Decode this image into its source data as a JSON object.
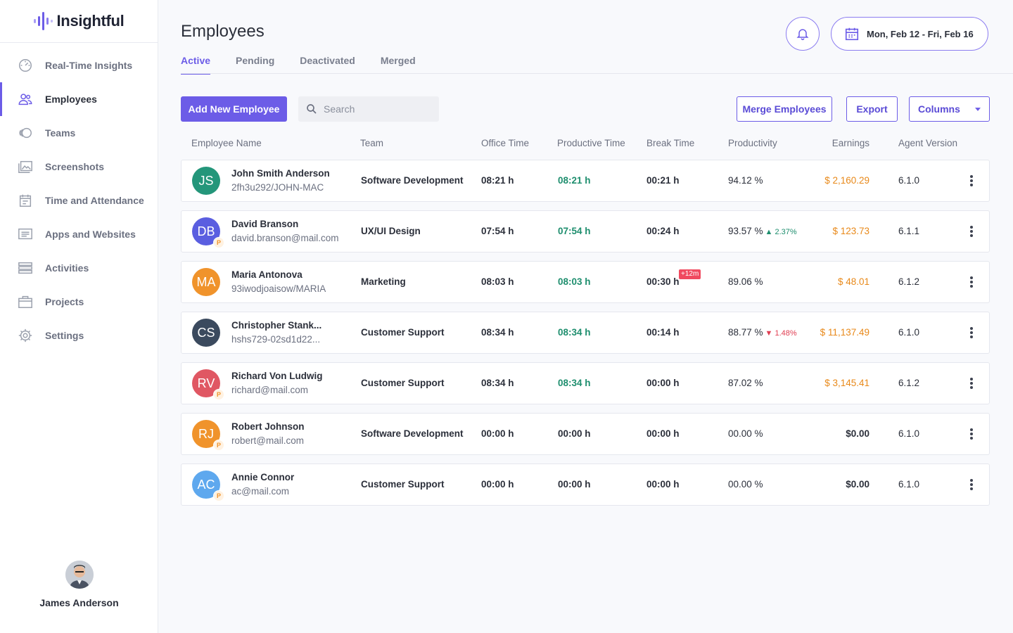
{
  "app": {
    "logo_text": "Insightful"
  },
  "sidebar": {
    "items": [
      {
        "label": "Real-Time Insights",
        "icon": "gauge-icon"
      },
      {
        "label": "Employees",
        "icon": "users-icon"
      },
      {
        "label": "Teams",
        "icon": "teams-icon"
      },
      {
        "label": "Screenshots",
        "icon": "images-icon"
      },
      {
        "label": "Time and Attendance",
        "icon": "calendar-icon"
      },
      {
        "label": "Apps and Websites",
        "icon": "monitor-list-icon"
      },
      {
        "label": "Activities",
        "icon": "list-icon"
      },
      {
        "label": "Projects",
        "icon": "briefcase-icon"
      },
      {
        "label": "Settings",
        "icon": "gear-icon"
      }
    ],
    "active_index": 1
  },
  "user": {
    "name": "James Anderson"
  },
  "header": {
    "title": "Employees",
    "tabs": [
      "Active",
      "Pending",
      "Deactivated",
      "Merged"
    ],
    "active_tab": 0,
    "date_range": "Mon, Feb 12 - Fri,  Feb 16"
  },
  "toolbar": {
    "add_label": "Add New Employee",
    "search_placeholder": "Search",
    "merge_label": "Merge Employees",
    "export_label": "Export",
    "columns_label": "Columns"
  },
  "table": {
    "headers": {
      "name": "Employee Name",
      "team": "Team",
      "office": "Office Time",
      "productive": "Productive Time",
      "break": "Break Time",
      "productivity": "Productivity",
      "earnings": "Earnings",
      "agent": "Agent Version"
    },
    "rows": [
      {
        "initials": "JS",
        "color": "#24967a",
        "pending": false,
        "name": "John Smith Anderson",
        "sub": "2fh3u292/JOHN-MAC",
        "team": "Software Development",
        "office": "08:21 h",
        "productive": "08:21 h",
        "productive_highlight": true,
        "break": "00:21 h",
        "break_badge": "",
        "productivity": "94.12 %",
        "trend": "",
        "trend_dir": "",
        "earnings": "$ 2,160.29",
        "earnings_zero": false,
        "agent": "6.1.0"
      },
      {
        "initials": "DB",
        "color": "#5a5ee0",
        "pending": true,
        "name": "David Branson",
        "sub": "david.branson@mail.com",
        "team": "UX/UI Design",
        "office": "07:54 h",
        "productive": "07:54 h",
        "productive_highlight": true,
        "break": "00:24 h",
        "break_badge": "",
        "productivity": "93.57 %",
        "trend": "2.37%",
        "trend_dir": "up",
        "earnings": "$ 123.73",
        "earnings_zero": false,
        "agent": "6.1.1"
      },
      {
        "initials": "MA",
        "color": "#f0932b",
        "pending": false,
        "name": "Maria Antonova",
        "sub": "93iwodjoaisow/MARIA",
        "team": "Marketing",
        "office": "08:03 h",
        "productive": "08:03 h",
        "productive_highlight": true,
        "break": "00:30 h",
        "break_badge": "+12m",
        "productivity": "89.06 %",
        "trend": "",
        "trend_dir": "",
        "earnings": "$ 48.01",
        "earnings_zero": false,
        "agent": "6.1.2"
      },
      {
        "initials": "CS",
        "color": "#3b4a5e",
        "pending": false,
        "name": "Christopher Stank...",
        "sub": "hshs729-02sd1d22...",
        "team": "Customer Support",
        "office": "08:34 h",
        "productive": "08:34 h",
        "productive_highlight": true,
        "break": "00:14 h",
        "break_badge": "",
        "productivity": "88.77 %",
        "trend": "1.48%",
        "trend_dir": "down",
        "earnings": "$ 11,137.49",
        "earnings_zero": false,
        "agent": "6.1.0"
      },
      {
        "initials": "RV",
        "color": "#e05763",
        "pending": true,
        "name": "Richard Von Ludwig",
        "sub": "richard@mail.com",
        "team": "Customer Support",
        "office": "08:34 h",
        "productive": "08:34 h",
        "productive_highlight": true,
        "break": "00:00 h",
        "break_badge": "",
        "productivity": "87.02 %",
        "trend": "",
        "trend_dir": "",
        "earnings": "$ 3,145.41",
        "earnings_zero": false,
        "agent": "6.1.2"
      },
      {
        "initials": "RJ",
        "color": "#f0932b",
        "pending": true,
        "name": "Robert Johnson",
        "sub": "robert@mail.com",
        "team": "Software Development",
        "office": "00:00 h",
        "productive": "00:00 h",
        "productive_highlight": false,
        "break": "00:00 h",
        "break_badge": "",
        "productivity": "00.00 %",
        "trend": "",
        "trend_dir": "",
        "earnings": "$0.00",
        "earnings_zero": true,
        "agent": "6.1.0"
      },
      {
        "initials": "AC",
        "color": "#5ea8ee",
        "pending": true,
        "name": "Annie Connor",
        "sub": "ac@mail.com",
        "team": "Customer Support",
        "office": "00:00 h",
        "productive": "00:00 h",
        "productive_highlight": false,
        "break": "00:00 h",
        "break_badge": "",
        "productivity": "00.00 %",
        "trend": "",
        "trend_dir": "",
        "earnings": "$0.00",
        "earnings_zero": true,
        "agent": "6.1.0"
      }
    ],
    "pending_badge": "P"
  },
  "colors": {
    "accent": "#6c5ce7",
    "productive": "#1e8e6e",
    "earnings": "#e8891a",
    "alert": "#f04a5f"
  }
}
